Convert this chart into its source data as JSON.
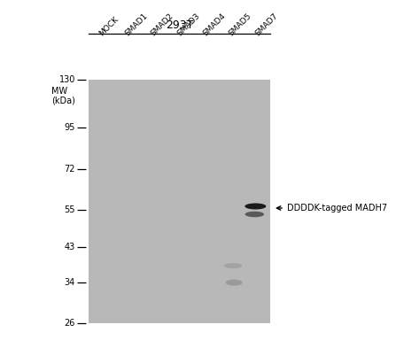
{
  "title": "293T",
  "lane_labels": [
    "MOCK",
    "SMAD1",
    "SMAD2",
    "SMAD3",
    "SMAD4",
    "SMAD5",
    "SMAD7"
  ],
  "mw_label_line1": "MW",
  "mw_label_line2": "(kDa)",
  "mw_markers": [
    130,
    95,
    72,
    55,
    43,
    34,
    26
  ],
  "gel_bg": "#b8b8b8",
  "fig_bg": "#ffffff",
  "band_annotation": "DDDDK-tagged MADH7",
  "main_band_lane_idx": 6,
  "main_band_mw": 55,
  "faint_band1_lane_idx": 5,
  "faint_band1_mw": 38,
  "faint_band2_lane_idx": 5,
  "faint_band2_mw": 34
}
